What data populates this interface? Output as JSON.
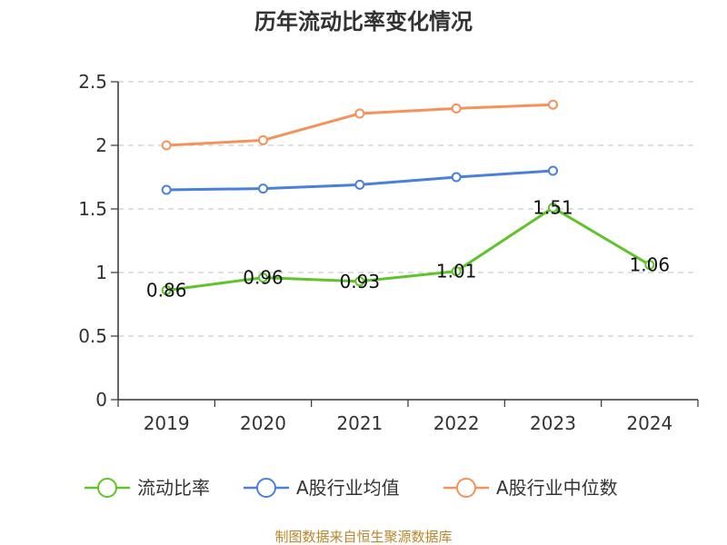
{
  "chart_data": {
    "type": "line",
    "title": "历年流动比率变化情况",
    "categories": [
      "2019",
      "2020",
      "2021",
      "2022",
      "2023",
      "2024"
    ],
    "ylim": [
      0,
      2.5
    ],
    "yticks": [
      "0",
      "0.5",
      "1",
      "1.5",
      "2",
      "2.5"
    ],
    "grid": true,
    "legend_position": "bottom",
    "series": [
      {
        "name": "流动比率",
        "color": "#5ec42a",
        "values": [
          0.86,
          0.96,
          0.93,
          1.01,
          1.51,
          1.06
        ],
        "labels": [
          "0.86",
          "0.96",
          "0.93",
          "1.01",
          "1.51",
          "1.06"
        ]
      },
      {
        "name": "A股行业均值",
        "color": "#4a7fdb",
        "values": [
          1.65,
          1.66,
          1.69,
          1.75,
          1.8,
          null
        ]
      },
      {
        "name": "A股行业中位数",
        "color": "#f5925a",
        "values": [
          2.0,
          2.04,
          2.25,
          2.29,
          2.32,
          null
        ]
      }
    ]
  },
  "source_text": "制图数据来自恒生聚源数据库"
}
